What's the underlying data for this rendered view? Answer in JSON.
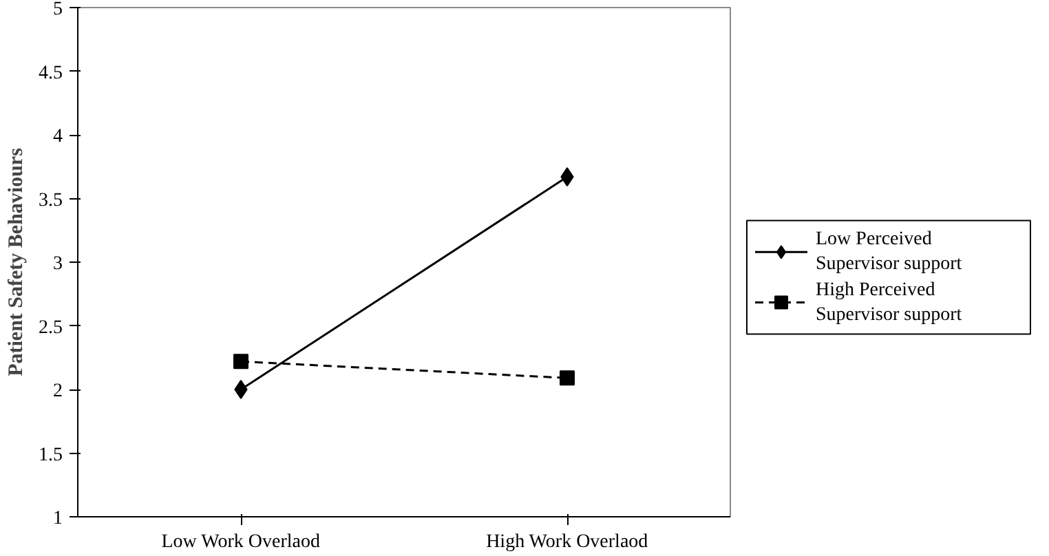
{
  "chart_data": {
    "type": "line",
    "ylabel": "Patient Safety Behaviours",
    "categories": [
      "Low Work Overlaod",
      "High Work Overlaod"
    ],
    "series": [
      {
        "name": "Low Perceived Supervisor support",
        "color": "#000000",
        "values": [
          2.0,
          3.67
        ],
        "line_style": "solid",
        "marker": "diamond"
      },
      {
        "name": "High Perceived Supervisor support",
        "color": "#000000",
        "values": [
          2.22,
          2.09
        ],
        "line_style": "dashed",
        "marker": "square"
      }
    ],
    "ylim": [
      1,
      5
    ],
    "yticks": [
      1,
      1.5,
      2,
      2.5,
      3,
      3.5,
      4,
      4.5,
      5
    ],
    "grid": false,
    "legend": "right"
  }
}
